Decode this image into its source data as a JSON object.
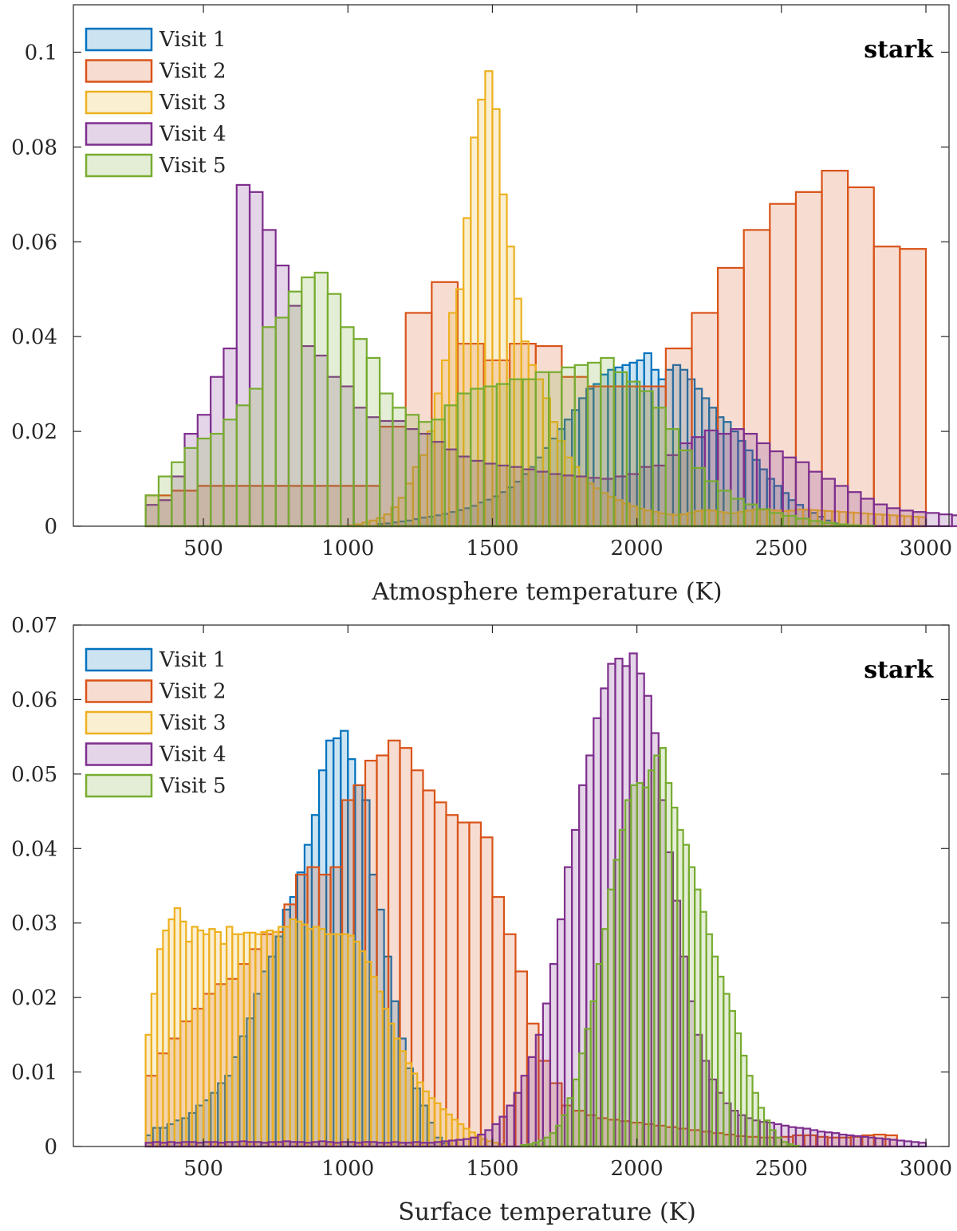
{
  "chart_data": [
    {
      "type": "histogram",
      "panel_label": "stark",
      "xlabel": "Atmosphere temperature (K)",
      "ylabel": "",
      "xlim": [
        50,
        3080
      ],
      "ylim": [
        0,
        0.11
      ],
      "xticks": [
        "500",
        "1000",
        "1500",
        "2000",
        "2500",
        "3000"
      ],
      "yticks": [
        "0",
        "0.02",
        "0.04",
        "0.06",
        "0.08",
        "0.1"
      ],
      "legend_position": "top-left",
      "series": [
        {
          "name": "Visit 1",
          "color": "#0072BD",
          "x_start": 1100,
          "bin_width": 25,
          "values": [
            0.0005,
            0.0006,
            0.0008,
            0.001,
            0.0012,
            0.0015,
            0.0018,
            0.002,
            0.0023,
            0.0026,
            0.003,
            0.0034,
            0.0038,
            0.0043,
            0.005,
            0.0056,
            0.0063,
            0.0072,
            0.0082,
            0.0094,
            0.011,
            0.0125,
            0.0145,
            0.0165,
            0.0185,
            0.0205,
            0.0225,
            0.0245,
            0.027,
            0.029,
            0.03,
            0.032,
            0.033,
            0.0335,
            0.034,
            0.0345,
            0.035,
            0.0365,
            0.033,
            0.031,
            0.033,
            0.034,
            0.033,
            0.031,
            0.029,
            0.027,
            0.025,
            0.023,
            0.022,
            0.02,
            0.018,
            0.016,
            0.014,
            0.012,
            0.01,
            0.0085,
            0.007,
            0.0055,
            0.0045,
            0.0035,
            0.0028,
            0.002,
            0.0012,
            0.0006
          ]
        },
        {
          "name": "Visit 2",
          "color": "#D95319",
          "x_start": 300,
          "bin_width": 90,
          "values": [
            0.0065,
            0.0075,
            0.0085,
            0.0085,
            0.0085,
            0.0085,
            0.0085,
            0.0085,
            0.0085,
            0.021,
            0.045,
            0.0515,
            0.0385,
            0.035,
            0.0385,
            0.038,
            0.0315,
            0.0295,
            0.0295,
            0.0295,
            0.0375,
            0.045,
            0.0545,
            0.0625,
            0.068,
            0.0705,
            0.075,
            0.0715,
            0.059,
            0.0585
          ]
        },
        {
          "name": "Visit 3",
          "color": "#EDB120",
          "x_start": 1000,
          "bin_width": 25,
          "values": [
            0.0002,
            0.0004,
            0.0008,
            0.0012,
            0.0017,
            0.0025,
            0.004,
            0.006,
            0.009,
            0.0125,
            0.015,
            0.02,
            0.028,
            0.035,
            0.045,
            0.05,
            0.065,
            0.082,
            0.09,
            0.096,
            0.088,
            0.07,
            0.059,
            0.048,
            0.039,
            0.034,
            0.031,
            0.027,
            0.022,
            0.018,
            0.0145,
            0.0125,
            0.0105,
            0.009,
            0.008,
            0.007,
            0.0062,
            0.0055,
            0.0048,
            0.0042,
            0.0037,
            0.0033,
            0.003,
            0.0027,
            0.0025,
            0.0024,
            0.0025,
            0.0028,
            0.0032,
            0.0034,
            0.0033,
            0.003,
            0.0028,
            0.0027,
            0.003,
            0.0033,
            0.0035,
            0.0035,
            0.0034,
            0.0033,
            0.0032,
            0.0033,
            0.0035,
            0.0035,
            0.0034,
            0.0033,
            0.0032,
            0.0031,
            0.003,
            0.0029,
            0.0028,
            0.0027,
            0.0026,
            0.0025,
            0.0024,
            0.0023,
            0.0022,
            0.0021,
            0.002,
            0.0019
          ]
        },
        {
          "name": "Visit 4",
          "color": "#7E2F8E",
          "x_start": 300,
          "bin_width": 45,
          "values": [
            0.0045,
            0.0055,
            0.0105,
            0.0195,
            0.0235,
            0.0315,
            0.0375,
            0.072,
            0.0705,
            0.0625,
            0.055,
            0.0465,
            0.038,
            0.036,
            0.0315,
            0.0295,
            0.025,
            0.023,
            0.0222,
            0.0222,
            0.0205,
            0.0195,
            0.0178,
            0.0162,
            0.0147,
            0.0138,
            0.0132,
            0.0128,
            0.0125,
            0.012,
            0.0115,
            0.011,
            0.0107,
            0.0105,
            0.0102,
            0.01,
            0.0105,
            0.011,
            0.0125,
            0.0128,
            0.015,
            0.0175,
            0.0188,
            0.0202,
            0.0195,
            0.0205,
            0.0195,
            0.0175,
            0.0158,
            0.0145,
            0.0135,
            0.0115,
            0.01,
            0.0085,
            0.0072,
            0.0058,
            0.0046,
            0.0038,
            0.0033,
            0.003,
            0.0028,
            0.0025,
            0.0023,
            0.002,
            0.0018,
            0.0016
          ]
        },
        {
          "name": "Visit 5",
          "color": "#77AC30",
          "x_start": 300,
          "bin_width": 45,
          "values": [
            0.0065,
            0.0105,
            0.0135,
            0.0165,
            0.0185,
            0.0195,
            0.0225,
            0.0255,
            0.029,
            0.042,
            0.044,
            0.0495,
            0.0525,
            0.0535,
            0.049,
            0.042,
            0.0395,
            0.0355,
            0.028,
            0.025,
            0.0235,
            0.022,
            0.0225,
            0.0255,
            0.028,
            0.029,
            0.0295,
            0.03,
            0.031,
            0.031,
            0.0325,
            0.0325,
            0.0335,
            0.034,
            0.0345,
            0.0355,
            0.0325,
            0.0305,
            0.0285,
            0.025,
            0.0205,
            0.016,
            0.0123,
            0.0095,
            0.0075,
            0.0058,
            0.0046,
            0.0036,
            0.0028,
            0.0022,
            0.0016,
            0.0011,
            0.0007,
            0.0004,
            0.0002,
            0.0001
          ]
        }
      ]
    },
    {
      "type": "histogram",
      "panel_label": "stark",
      "xlabel": "Surface temperature (K)",
      "ylabel": "",
      "xlim": [
        50,
        3080
      ],
      "ylim": [
        0,
        0.07
      ],
      "xticks": [
        "500",
        "1000",
        "1500",
        "2000",
        "2500",
        "3000"
      ],
      "yticks": [
        "0",
        "0.01",
        "0.02",
        "0.03",
        "0.04",
        "0.05",
        "0.06",
        "0.07"
      ],
      "legend_position": "top-left",
      "series": [
        {
          "name": "Visit 1",
          "color": "#0072BD",
          "x_start": 300,
          "bin_width": 25,
          "values": [
            0.0015,
            0.0025,
            0.0025,
            0.003,
            0.0035,
            0.0038,
            0.0045,
            0.0055,
            0.0062,
            0.0072,
            0.0085,
            0.0095,
            0.012,
            0.0148,
            0.0172,
            0.0205,
            0.0235,
            0.0255,
            0.0282,
            0.0318,
            0.0335,
            0.0368,
            0.0405,
            0.0445,
            0.0505,
            0.0545,
            0.0548,
            0.0558,
            0.052,
            0.0485,
            0.0465,
            0.0365,
            0.0318,
            0.0255,
            0.0195,
            0.0145,
            0.0105,
            0.0078,
            0.0055,
            0.0032,
            0.0012,
            0.0004
          ]
        },
        {
          "name": "Visit 2",
          "color": "#D95319",
          "x_start": 300,
          "bin_width": 40,
          "values": [
            0.0095,
            0.0125,
            0.0145,
            0.0168,
            0.0185,
            0.0205,
            0.0218,
            0.0225,
            0.0245,
            0.0265,
            0.0285,
            0.0288,
            0.0325,
            0.0365,
            0.0375,
            0.0365,
            0.0375,
            0.0465,
            0.0485,
            0.0518,
            0.0525,
            0.0545,
            0.0535,
            0.0505,
            0.0478,
            0.0462,
            0.0445,
            0.0435,
            0.0435,
            0.0415,
            0.0335,
            0.0285,
            0.0235,
            0.0165,
            0.0115,
            0.0085,
            0.0055,
            0.0048,
            0.0042,
            0.0038,
            0.0036,
            0.0034,
            0.0032,
            0.003,
            0.0028,
            0.0026,
            0.0024,
            0.0022,
            0.002,
            0.0018,
            0.0016,
            0.0014,
            0.0013,
            0.0012,
            0.0012,
            0.0013,
            0.0015,
            0.0015,
            0.0013,
            0.0012,
            0.0012,
            0.0013,
            0.0015,
            0.0016,
            0.0015
          ]
        },
        {
          "name": "Visit 3",
          "color": "#EDB120",
          "x_start": 300,
          "bin_width": 20,
          "values": [
            0.015,
            0.0205,
            0.0265,
            0.029,
            0.0305,
            0.032,
            0.0302,
            0.0275,
            0.0295,
            0.029,
            0.0285,
            0.0292,
            0.0288,
            0.0272,
            0.0295,
            0.0285,
            0.0285,
            0.0287,
            0.0287,
            0.0285,
            0.0288,
            0.029,
            0.0288,
            0.0295,
            0.0295,
            0.0305,
            0.0302,
            0.0298,
            0.0292,
            0.0295,
            0.0292,
            0.0285,
            0.0285,
            0.0285,
            0.0285,
            0.0283,
            0.0275,
            0.0262,
            0.0248,
            0.0228,
            0.0208,
            0.0185,
            0.0165,
            0.0145,
            0.0128,
            0.0112,
            0.0098,
            0.0086,
            0.0074,
            0.0065,
            0.0058,
            0.005,
            0.0043,
            0.0036,
            0.003,
            0.0024,
            0.0019,
            0.0014,
            0.001,
            0.0007,
            0.0005,
            0.0003
          ]
        },
        {
          "name": "Visit 4",
          "color": "#7E2F8E",
          "x_start": 300,
          "bin_width": 25,
          "values": [
            0.0005,
            0.0006,
            0.0005,
            0.0006,
            0.0005,
            0.0006,
            0.0006,
            0.0005,
            0.0006,
            0.0006,
            0.0005,
            0.0006,
            0.0006,
            0.0007,
            0.0006,
            0.0006,
            0.0005,
            0.0006,
            0.0006,
            0.0007,
            0.0006,
            0.0006,
            0.0005,
            0.0006,
            0.0007,
            0.0006,
            0.0005,
            0.0006,
            0.0006,
            0.0005,
            0.0006,
            0.0006,
            0.0005,
            0.0005,
            0.0006,
            0.0005,
            0.0005,
            0.0006,
            0.0005,
            0.0005,
            0.0006,
            0.0007,
            0.0008,
            0.0009,
            0.001,
            0.0012,
            0.0016,
            0.0022,
            0.003,
            0.004,
            0.0055,
            0.0072,
            0.0095,
            0.012,
            0.015,
            0.0192,
            0.0245,
            0.0305,
            0.0375,
            0.0425,
            0.0485,
            0.0525,
            0.0575,
            0.0615,
            0.0648,
            0.0655,
            0.0645,
            0.0662,
            0.0635,
            0.0605,
            0.0555,
            0.0465,
            0.0395,
            0.033,
            0.0255,
            0.0195,
            0.015,
            0.0115,
            0.009,
            0.0072,
            0.0058,
            0.0048,
            0.0042,
            0.0038,
            0.0035,
            0.0033,
            0.0032,
            0.003,
            0.0028,
            0.0026,
            0.0025,
            0.0024,
            0.0022,
            0.002,
            0.0019,
            0.0018,
            0.0016,
            0.0015,
            0.0014,
            0.0013,
            0.0012,
            0.0011,
            0.001,
            0.0009,
            0.0008,
            0.0007,
            0.0006,
            0.0005
          ]
        },
        {
          "name": "Visit 5",
          "color": "#77AC30",
          "x_start": 1600,
          "bin_width": 20,
          "values": [
            0.0002,
            0.0003,
            0.0005,
            0.0008,
            0.0012,
            0.0018,
            0.0028,
            0.0042,
            0.0065,
            0.009,
            0.0125,
            0.0158,
            0.0195,
            0.0245,
            0.0292,
            0.0345,
            0.0385,
            0.0425,
            0.0465,
            0.0485,
            0.0488,
            0.0482,
            0.0505,
            0.0525,
            0.0535,
            0.0488,
            0.0455,
            0.0425,
            0.0405,
            0.0375,
            0.0345,
            0.0315,
            0.0285,
            0.0255,
            0.0228,
            0.0205,
            0.0182,
            0.0152,
            0.0122,
            0.0095,
            0.0072,
            0.0052,
            0.0035,
            0.0022,
            0.0012,
            0.0006,
            0.0003,
            0.0001
          ]
        }
      ]
    }
  ]
}
